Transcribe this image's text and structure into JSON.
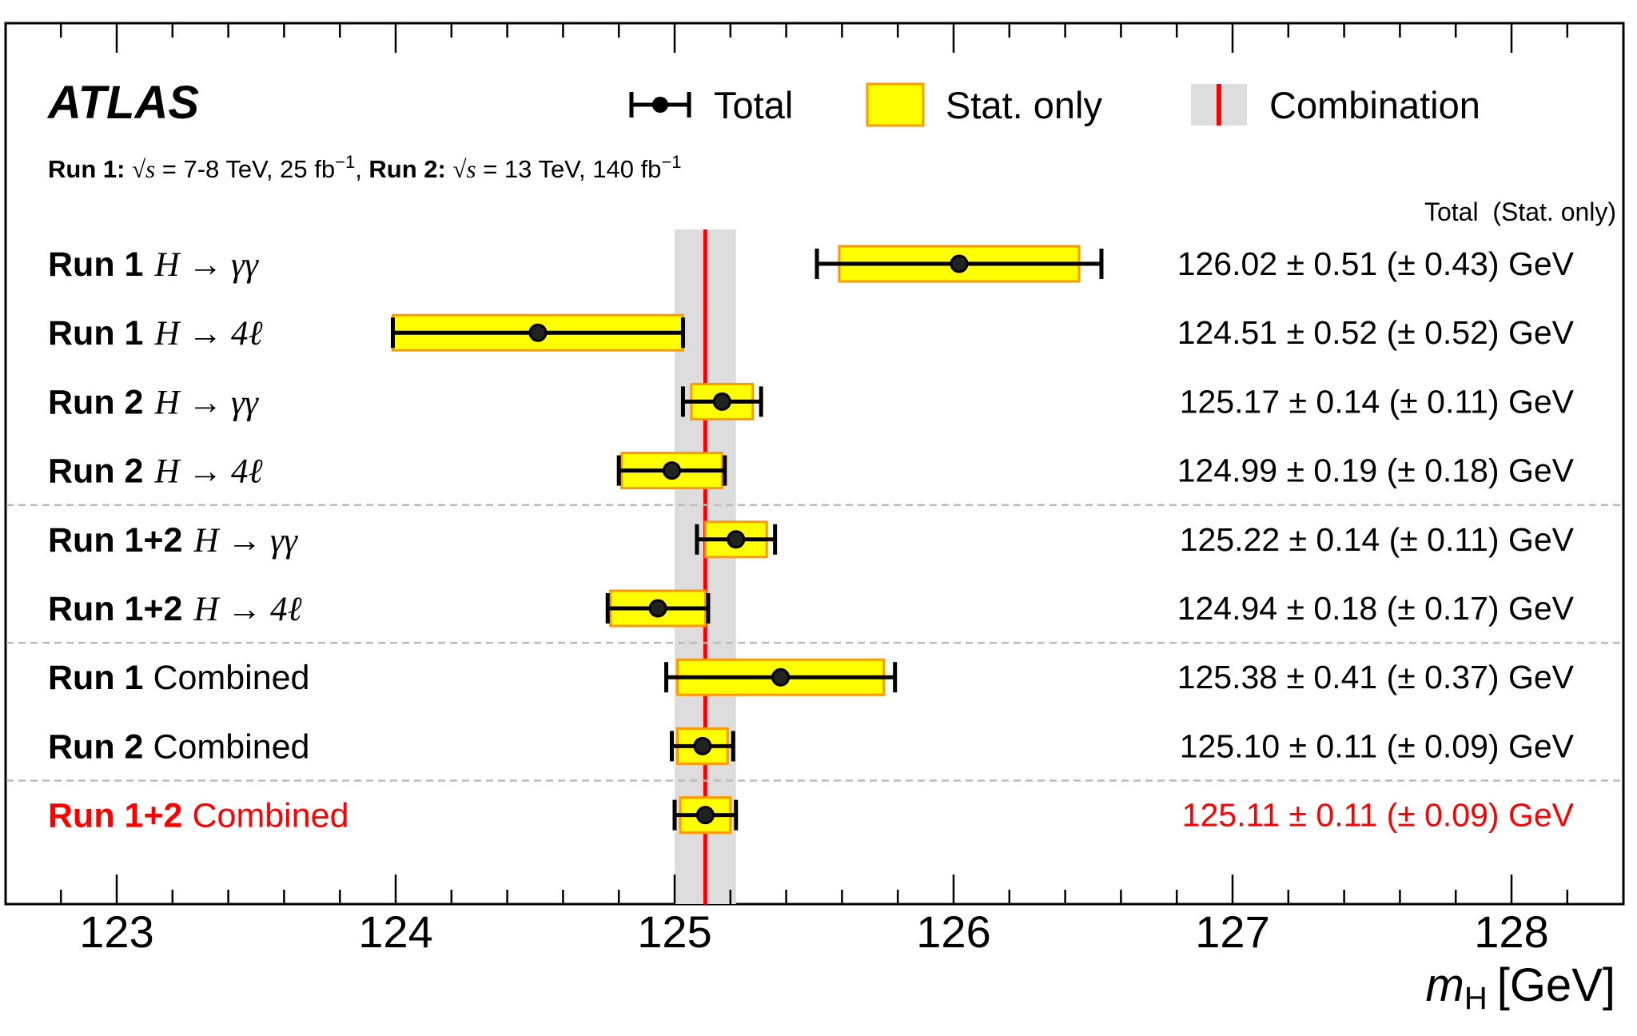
{
  "chart_data": {
    "type": "forest",
    "title": "ATLAS",
    "subtitle": {
      "run1_label": "Run 1:",
      "run1_text": "= 7-8 TeV, 25 fb",
      "run1_sqrt": "√s",
      "run2_label": "Run 2:",
      "run2_text": "= 13 TeV, 140 fb",
      "run2_sqrt": "√s",
      "sup": "−1"
    },
    "legend": {
      "total": "Total",
      "stat": "Stat. only",
      "comb": "Combination",
      "placement": "top"
    },
    "column_header": "Total  (Stat. only)",
    "xlabel_m": "m",
    "xlabel_sub": "H",
    "xlabel_unit": "[GeV]",
    "xlim": [
      122.8,
      128.4
    ],
    "xticks": [
      "123",
      "124",
      "125",
      "126",
      "127",
      "128"
    ],
    "combination": {
      "value": 125.11,
      "total": 0.11
    },
    "colors": {
      "stat": "#ffff00",
      "stat_edge": "#ff9900",
      "band": "#dddddd",
      "line": "#ff0000",
      "highlight": "#ff0000"
    },
    "rows": [
      {
        "bold": "Run 1",
        "rest": "",
        "math": "H → γγ",
        "value": 126.02,
        "total": 0.51,
        "stat": 0.43,
        "text": "126.02 ± 0.51 (± 0.43) GeV",
        "highlight": false
      },
      {
        "bold": "Run 1",
        "rest": "",
        "math": "H → 4ℓ",
        "value": 124.51,
        "total": 0.52,
        "stat": 0.52,
        "text": "124.51 ± 0.52 (± 0.52) GeV",
        "highlight": false
      },
      {
        "bold": "Run 2",
        "rest": "",
        "math": "H → γγ",
        "value": 125.17,
        "total": 0.14,
        "stat": 0.11,
        "text": "125.17 ± 0.14 (± 0.11) GeV",
        "highlight": false
      },
      {
        "bold": "Run 2",
        "rest": "",
        "math": "H → 4ℓ",
        "value": 124.99,
        "total": 0.19,
        "stat": 0.18,
        "text": "124.99 ± 0.19 (± 0.18) GeV",
        "highlight": false
      },
      {
        "bold": "Run 1+2",
        "rest": "",
        "math": "H → γγ",
        "value": 125.22,
        "total": 0.14,
        "stat": 0.11,
        "text": "125.22 ± 0.14 (± 0.11) GeV",
        "highlight": false
      },
      {
        "bold": "Run 1+2",
        "rest": "",
        "math": "H → 4ℓ",
        "value": 124.94,
        "total": 0.18,
        "stat": 0.17,
        "text": "124.94 ± 0.18 (± 0.17) GeV",
        "highlight": false
      },
      {
        "bold": "Run 1",
        "rest": "Combined",
        "math": "",
        "value": 125.38,
        "total": 0.41,
        "stat": 0.37,
        "text": "125.38 ± 0.41 (± 0.37) GeV",
        "highlight": false
      },
      {
        "bold": "Run 2",
        "rest": "Combined",
        "math": "",
        "value": 125.1,
        "total": 0.11,
        "stat": 0.09,
        "text": "125.10 ± 0.11 (± 0.09) GeV",
        "highlight": false
      },
      {
        "bold": "Run 1+2",
        "rest": "Combined",
        "math": "",
        "value": 125.11,
        "total": 0.11,
        "stat": 0.09,
        "text": "125.11 ± 0.11 (± 0.09) GeV",
        "highlight": true
      }
    ],
    "separators_after_rows": [
      3,
      5,
      7
    ]
  }
}
